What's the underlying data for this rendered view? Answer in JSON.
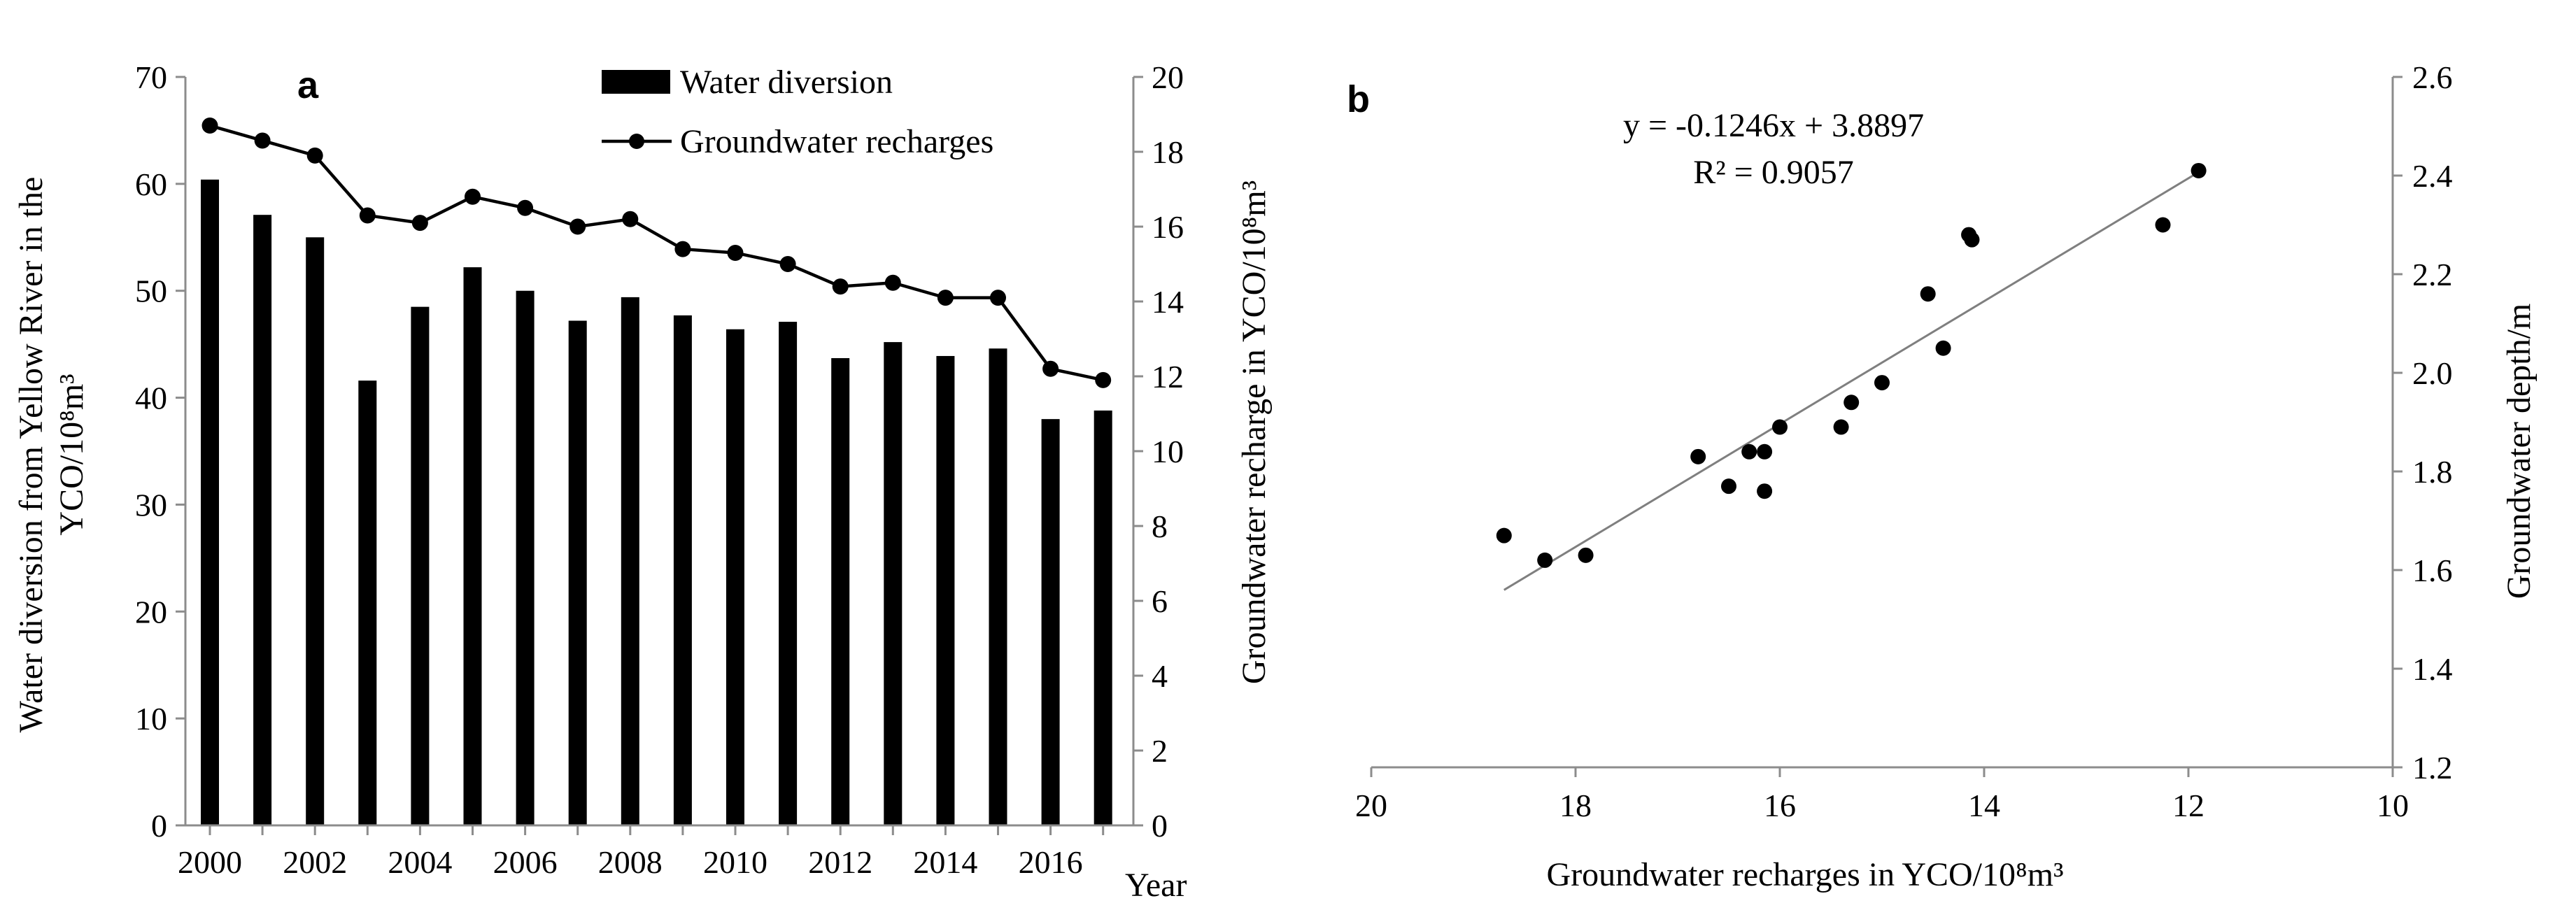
{
  "colors": {
    "ink": "#000000",
    "axis": "#8c8c8c",
    "trend": "#7f7f7f",
    "background": "#ffffff"
  },
  "chart_data": [
    {
      "panel_label": "a",
      "type": "bar+line",
      "categories": [
        "2000",
        "2001",
        "2002",
        "2003",
        "2004",
        "2005",
        "2006",
        "2007",
        "2008",
        "2009",
        "2010",
        "2011",
        "2012",
        "2013",
        "2014",
        "2015",
        "2016",
        "2017"
      ],
      "series": [
        {
          "name": "Water diversion",
          "type": "bar",
          "axis": "left",
          "values": [
            60.4,
            57.1,
            55.0,
            41.6,
            48.5,
            52.2,
            50.0,
            47.2,
            49.4,
            47.7,
            46.4,
            47.1,
            43.7,
            45.2,
            43.9,
            44.6,
            38.0,
            38.8
          ]
        },
        {
          "name": "Groundwater recharges",
          "type": "line",
          "axis": "right",
          "values": [
            18.7,
            18.3,
            17.9,
            16.3,
            16.1,
            16.8,
            16.5,
            16.0,
            16.2,
            15.4,
            15.3,
            15.0,
            14.4,
            14.5,
            14.1,
            14.1,
            12.2,
            11.9
          ]
        }
      ],
      "x_tick_labels": [
        "2000",
        "2002",
        "2004",
        "2006",
        "2008",
        "2010",
        "2012",
        "2014",
        "2016"
      ],
      "xlabel": "Year",
      "ylabel_left_line1": "Water diversion from Yellow River in the",
      "ylabel_left_line2": "YCO/10⁸m³",
      "ylabel_right": "Groundwater recharge in YCO/10⁸m³",
      "ylim_left": [
        0,
        70
      ],
      "yticks_left": [
        "0",
        "10",
        "20",
        "30",
        "40",
        "50",
        "60",
        "70"
      ],
      "ylim_right": [
        0,
        20
      ],
      "yticks_right": [
        "0",
        "2",
        "4",
        "6",
        "8",
        "10",
        "12",
        "14",
        "16",
        "18",
        "20"
      ],
      "legend_position": "top-right"
    },
    {
      "panel_label": "b",
      "type": "scatter",
      "points": [
        {
          "x": 18.7,
          "y": 1.67
        },
        {
          "x": 18.3,
          "y": 1.62
        },
        {
          "x": 17.9,
          "y": 1.63
        },
        {
          "x": 16.8,
          "y": 1.83
        },
        {
          "x": 16.5,
          "y": 1.77
        },
        {
          "x": 16.3,
          "y": 1.84
        },
        {
          "x": 16.15,
          "y": 1.84
        },
        {
          "x": 16.15,
          "y": 1.76
        },
        {
          "x": 16.0,
          "y": 1.89
        },
        {
          "x": 15.4,
          "y": 1.89
        },
        {
          "x": 15.3,
          "y": 1.94
        },
        {
          "x": 15.0,
          "y": 1.98
        },
        {
          "x": 14.55,
          "y": 2.16
        },
        {
          "x": 14.4,
          "y": 2.05
        },
        {
          "x": 14.15,
          "y": 2.28
        },
        {
          "x": 14.12,
          "y": 2.27
        },
        {
          "x": 12.25,
          "y": 2.3
        },
        {
          "x": 11.9,
          "y": 2.41
        }
      ],
      "trendline": {
        "slope": -0.1246,
        "intercept": 3.8897,
        "x_from": 18.7,
        "x_to": 11.9
      },
      "equation": "y = -0.1246x + 3.8897",
      "r_squared": "R² = 0.9057",
      "xlabel": "Groundwater recharges in YCO/10⁸m³",
      "ylabel_right": "Groundwater depth/m",
      "xlim": [
        20,
        10
      ],
      "x_tick_labels": [
        "20",
        "18",
        "16",
        "14",
        "12",
        "10"
      ],
      "ylim_right": [
        1.2,
        2.6
      ],
      "yticks_right": [
        "1.2",
        "1.4",
        "1.6",
        "1.8",
        "2.0",
        "2.2",
        "2.4",
        "2.6"
      ]
    }
  ]
}
